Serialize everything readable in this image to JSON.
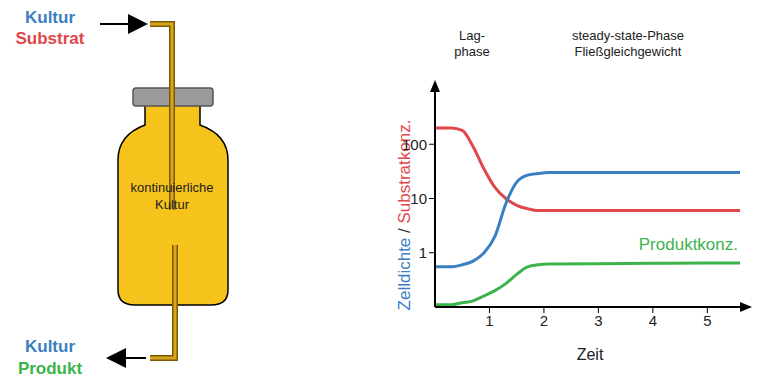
{
  "diagram": {
    "inlet": [
      {
        "text": "Kultur",
        "color": "#3a7fc1"
      },
      {
        "text": "Substrat",
        "color": "#e0474c"
      }
    ],
    "outlet": [
      {
        "text": "Kultur",
        "color": "#3a7fc1"
      },
      {
        "text": "Produkt",
        "color": "#3cb44b"
      }
    ],
    "vessel_label": [
      "kontinuierliche",
      "Kultur"
    ]
  },
  "chart_data": {
    "type": "line",
    "annotations": [
      [
        "Lag-",
        "phase"
      ],
      [
        "steady-state-Phase",
        "Fließgleichgewicht"
      ]
    ],
    "xlabel": "Zeit",
    "ylabel": [
      {
        "text": "Zelldichte",
        "color": "#3a7fc1"
      },
      {
        "text": "/",
        "color": "#333333"
      },
      {
        "text": "Substratkonz.",
        "color": "#e0474c"
      }
    ],
    "x": [
      0,
      0.3,
      0.5,
      0.7,
      0.9,
      1.1,
      1.3,
      1.5,
      1.7,
      1.9,
      2.1,
      3,
      4,
      5,
      5.6
    ],
    "series": [
      {
        "name": "Substratkonz.",
        "color": "#e0474c",
        "values": [
          200,
          200,
          180,
          90,
          35,
          16,
          10,
          7.5,
          6.5,
          6,
          6,
          6,
          6,
          6,
          6
        ]
      },
      {
        "name": "Zelldichte",
        "color": "#3a7fc1",
        "values": [
          0.55,
          0.55,
          0.6,
          0.7,
          1,
          2,
          8,
          20,
          27,
          29,
          30,
          30,
          30,
          30,
          30
        ]
      },
      {
        "name": "Produktkonz.",
        "color": "#3cb44b",
        "values": [
          0.11,
          0.11,
          0.12,
          0.13,
          0.16,
          0.2,
          0.27,
          0.4,
          0.55,
          0.6,
          0.62,
          0.63,
          0.64,
          0.65,
          0.65
        ]
      }
    ],
    "xlim": [
      0,
      5.6
    ],
    "ylim": [
      0.1,
      1000
    ],
    "xticks": [
      1,
      2,
      3,
      4,
      5
    ],
    "yticks": [
      1,
      10,
      100
    ],
    "log": "y",
    "grid": false
  }
}
